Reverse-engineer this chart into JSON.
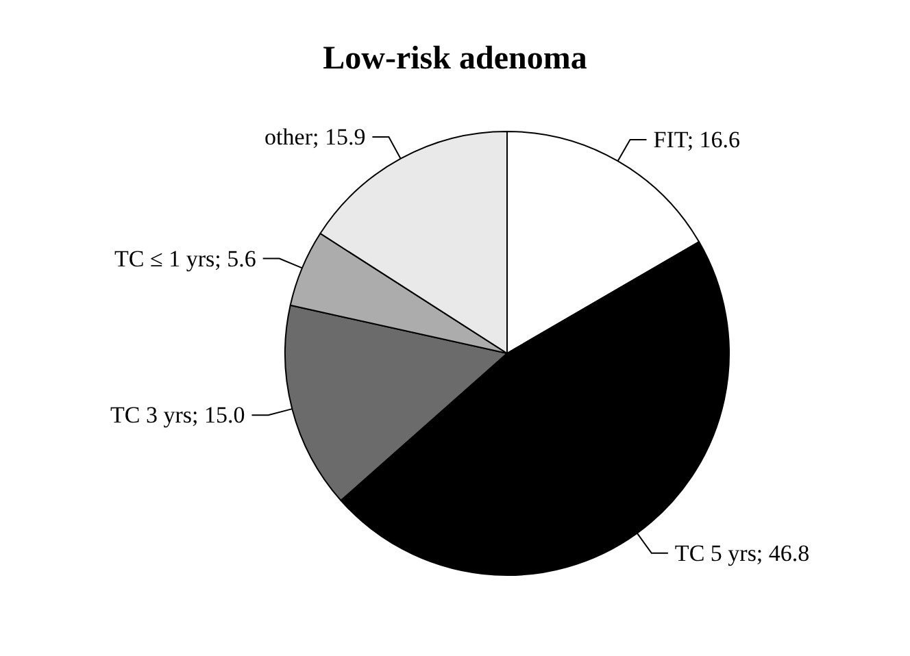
{
  "chart_data": {
    "type": "pie",
    "title": "Low-risk adenoma",
    "categories": [
      "FIT",
      "TC 5 yrs",
      "TC 3 yrs",
      "TC ≤ 1 yrs",
      "other"
    ],
    "values": [
      16.6,
      46.8,
      15.0,
      5.6,
      15.9
    ],
    "value_labels": [
      "16.6",
      "46.8",
      "15.0",
      "5.6",
      "15.9"
    ],
    "colors": [
      "#ffffff",
      "#000000",
      "#6b6b6b",
      "#acacac",
      "#e9e9e9"
    ],
    "legend": false
  }
}
